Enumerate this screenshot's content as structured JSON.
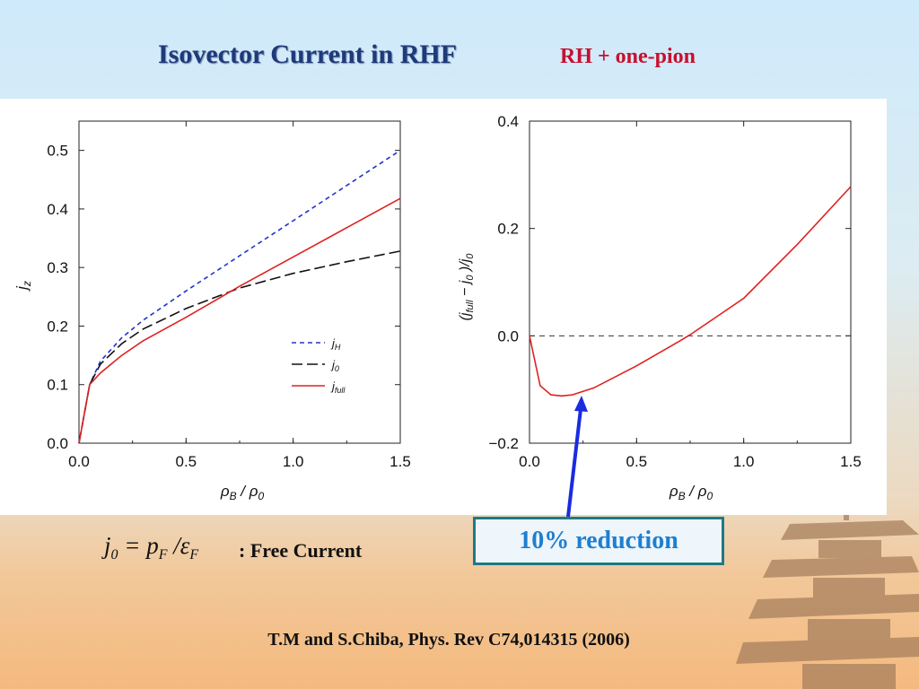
{
  "slide": {
    "title": "Isovector Current in RHF",
    "subtitle": "RH + one-pion",
    "formula_lhs": "j",
    "formula_lhs_sub": "0",
    "formula_mid": " = p",
    "formula_mid_sub": "F",
    "formula_div": " /ε",
    "formula_div_sub": "F",
    "formula_desc": ": Free Current",
    "callout": "10% reduction",
    "citation": "T.M and S.Chiba, Phys. Rev C74,014315 (2006)"
  },
  "colors": {
    "title": "#1f3a7a",
    "subtitle": "#c8102e",
    "jH": "#2233cc",
    "j0": "#111111",
    "jfull": "#e02020",
    "arrow": "#1a2be0",
    "callout_border": "#1e7a86",
    "callout_text": "#1e7fd0"
  },
  "chart_data": [
    {
      "type": "line",
      "xlabel": "ρB / ρ0",
      "ylabel": "jz",
      "xlim": [
        0,
        1.5
      ],
      "ylim": [
        0,
        0.55
      ],
      "xticks": [
        "0.0",
        "0.5",
        "1.0",
        "1.5"
      ],
      "yticks": [
        "0.0",
        "0.1",
        "0.2",
        "0.3",
        "0.4",
        "0.5"
      ],
      "legend_position": "lower-right",
      "series": [
        {
          "name": "jH",
          "style": "dashed-short",
          "color": "#2233cc",
          "x": [
            0,
            0.05,
            0.1,
            0.2,
            0.3,
            0.5,
            0.75,
            1.0,
            1.25,
            1.5
          ],
          "y": [
            0,
            0.1,
            0.14,
            0.18,
            0.21,
            0.26,
            0.32,
            0.38,
            0.44,
            0.5
          ]
        },
        {
          "name": "j0",
          "style": "dashed-long",
          "color": "#111111",
          "x": [
            0,
            0.05,
            0.1,
            0.2,
            0.3,
            0.5,
            0.75,
            1.0,
            1.25,
            1.5
          ],
          "y": [
            0,
            0.1,
            0.135,
            0.17,
            0.195,
            0.23,
            0.265,
            0.29,
            0.31,
            0.328
          ]
        },
        {
          "name": "jfull",
          "style": "solid",
          "color": "#e02020",
          "x": [
            0,
            0.05,
            0.1,
            0.2,
            0.3,
            0.5,
            0.75,
            1.0,
            1.25,
            1.5
          ],
          "y": [
            0,
            0.1,
            0.12,
            0.15,
            0.175,
            0.215,
            0.268,
            0.318,
            0.368,
            0.418
          ]
        }
      ]
    },
    {
      "type": "line",
      "xlabel": "ρB / ρ0",
      "ylabel": "(jfull − j0 )/j0",
      "xlim": [
        0,
        1.5
      ],
      "ylim": [
        -0.2,
        0.4
      ],
      "xticks": [
        "0.0",
        "0.5",
        "1.0",
        "1.5"
      ],
      "yticks": [
        "−0.2",
        "0.0",
        "0.2",
        "0.4"
      ],
      "reference_line": {
        "y": 0,
        "style": "dashed"
      },
      "series": [
        {
          "name": "",
          "style": "solid",
          "color": "#e02020",
          "x": [
            0,
            0.05,
            0.1,
            0.15,
            0.2,
            0.3,
            0.5,
            0.7,
            0.75,
            1.0,
            1.25,
            1.5
          ],
          "y": [
            0,
            -0.093,
            -0.11,
            -0.112,
            -0.11,
            -0.097,
            -0.056,
            -0.01,
            0.002,
            0.07,
            0.17,
            0.278
          ]
        }
      ]
    }
  ]
}
